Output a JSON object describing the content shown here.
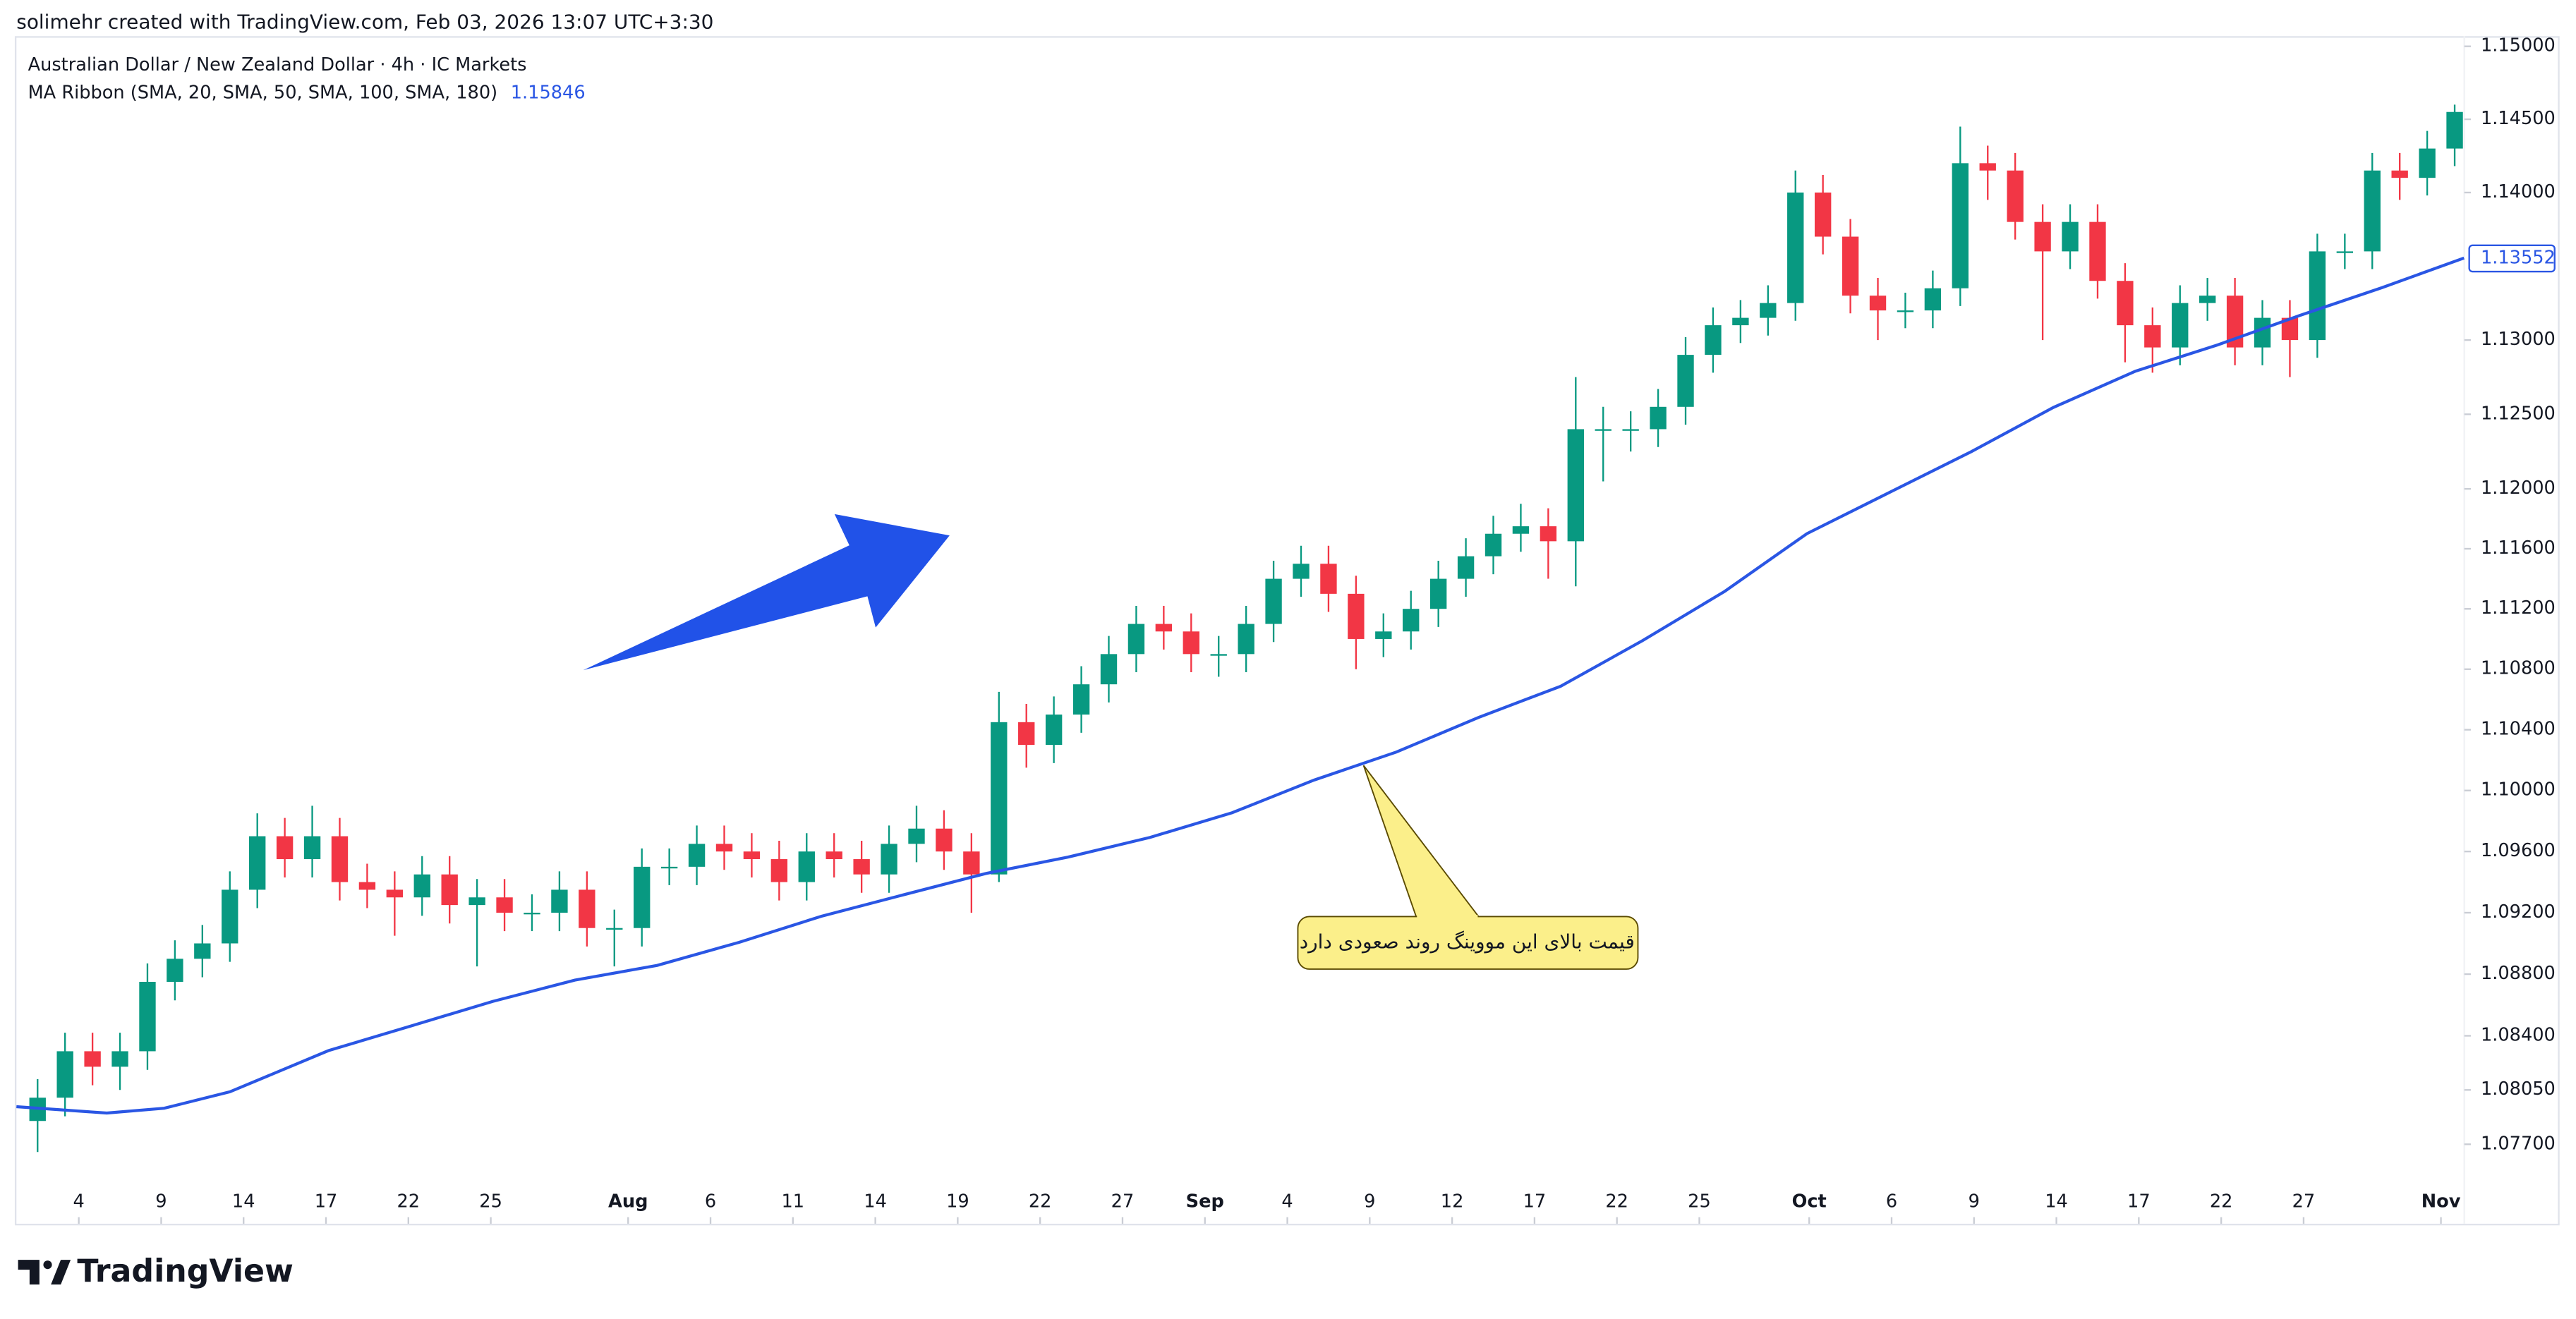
{
  "credit": "solimehr created with TradingView.com, Feb 03, 2026 13:07 UTC+3:30",
  "brand": "TradingView",
  "chart_data": {
    "type": "candlestick",
    "title": "Australian Dollar / New Zealand Dollar · 4h · IC Markets",
    "annotation": "قیمت بالای این مووینگ روند صعودی دارد",
    "log_scale": true,
    "grid": false,
    "up_color": "#089981",
    "down_color": "#f23645",
    "x": [
      1,
      2,
      3,
      4,
      5,
      6,
      7,
      8,
      9,
      10,
      11,
      12,
      13,
      14,
      15,
      16,
      17,
      18,
      19,
      20,
      21,
      22,
      23,
      24,
      25,
      26,
      27,
      28,
      29,
      30,
      31,
      32,
      33,
      34,
      35,
      36,
      37,
      38,
      39,
      40,
      41,
      42,
      43,
      44,
      45,
      46,
      47,
      48,
      49,
      50,
      51,
      52,
      53,
      54,
      55,
      56,
      57,
      58,
      59,
      60,
      61,
      62,
      63,
      64,
      65,
      66,
      67,
      68,
      69,
      70,
      71,
      72,
      73,
      74,
      75,
      76,
      77,
      78,
      79,
      80,
      81,
      82,
      83,
      84,
      85,
      86,
      87,
      88,
      89
    ],
    "open": [
      1.0785,
      1.08,
      1.083,
      1.082,
      1.083,
      1.0875,
      1.089,
      1.09,
      1.0935,
      1.097,
      1.0955,
      1.097,
      1.094,
      1.0935,
      1.093,
      1.0945,
      1.0925,
      1.093,
      1.092,
      1.092,
      1.0935,
      1.091,
      1.091,
      1.095,
      1.095,
      1.0965,
      1.096,
      1.0955,
      1.094,
      1.096,
      1.0955,
      1.0945,
      1.0965,
      1.0975,
      1.096,
      1.0945,
      1.1045,
      1.103,
      1.105,
      1.107,
      1.109,
      1.111,
      1.1105,
      1.109,
      1.109,
      1.111,
      1.114,
      1.115,
      1.113,
      1.11,
      1.1105,
      1.112,
      1.114,
      1.1155,
      1.117,
      1.1175,
      1.1165,
      1.124,
      1.124,
      1.124,
      1.1255,
      1.129,
      1.131,
      1.1315,
      1.1325,
      1.14,
      1.137,
      1.133,
      1.132,
      1.132,
      1.1335,
      1.142,
      1.1415,
      1.138,
      1.136,
      1.138,
      1.134,
      1.131,
      1.1295,
      1.1325,
      1.133,
      1.1295,
      1.1315,
      1.13,
      1.136,
      1.136,
      1.1415,
      1.141,
      1.143
    ],
    "high": [
      1.0812,
      1.0842,
      1.0842,
      1.0842,
      1.0887,
      1.0902,
      1.0912,
      1.0947,
      1.0985,
      1.0982,
      1.099,
      1.0982,
      1.0952,
      1.0947,
      1.0957,
      1.0957,
      1.0942,
      1.0942,
      1.0932,
      1.0947,
      1.0947,
      1.0922,
      1.0962,
      1.0962,
      1.0977,
      1.0977,
      1.0972,
      1.0967,
      1.0972,
      1.0972,
      1.0967,
      1.0977,
      1.099,
      1.0987,
      1.0972,
      1.1065,
      1.1057,
      1.1062,
      1.1082,
      1.1102,
      1.1122,
      1.1122,
      1.1117,
      1.1102,
      1.1122,
      1.1152,
      1.1162,
      1.1162,
      1.1142,
      1.1117,
      1.1132,
      1.1152,
      1.1167,
      1.1182,
      1.119,
      1.1187,
      1.1275,
      1.1255,
      1.1252,
      1.1267,
      1.1302,
      1.1322,
      1.1327,
      1.1337,
      1.1415,
      1.1412,
      1.1382,
      1.1342,
      1.1332,
      1.1347,
      1.1445,
      1.1432,
      1.1427,
      1.1392,
      1.1392,
      1.1392,
      1.1352,
      1.1322,
      1.1337,
      1.1342,
      1.1342,
      1.1327,
      1.1327,
      1.1372,
      1.1372,
      1.1427,
      1.1427,
      1.1442,
      1.146
    ],
    "low": [
      1.0765,
      1.0788,
      1.0808,
      1.0805,
      1.0818,
      1.0863,
      1.0878,
      1.0888,
      1.0923,
      1.0943,
      1.0943,
      1.0928,
      1.0923,
      1.0905,
      1.0918,
      1.0913,
      1.0885,
      1.0908,
      1.0908,
      1.0908,
      1.0898,
      1.0885,
      1.0898,
      1.0938,
      1.0938,
      1.0948,
      1.0943,
      1.0928,
      1.0928,
      1.0943,
      1.0933,
      1.0933,
      1.0953,
      1.0948,
      1.092,
      1.094,
      1.1015,
      1.1018,
      1.1038,
      1.1058,
      1.1078,
      1.1093,
      1.1078,
      1.1075,
      1.1078,
      1.1098,
      1.1128,
      1.1118,
      1.108,
      1.1088,
      1.1093,
      1.1108,
      1.1128,
      1.1143,
      1.1158,
      1.114,
      1.1135,
      1.1205,
      1.1225,
      1.1228,
      1.1243,
      1.1278,
      1.1298,
      1.1303,
      1.1313,
      1.1358,
      1.1318,
      1.13,
      1.1308,
      1.1308,
      1.1323,
      1.1395,
      1.1368,
      1.13,
      1.1348,
      1.1328,
      1.1285,
      1.1278,
      1.1283,
      1.1313,
      1.1283,
      1.1283,
      1.1275,
      1.1288,
      1.1348,
      1.1348,
      1.1395,
      1.1398,
      1.1418
    ],
    "close": [
      1.08,
      1.083,
      1.082,
      1.083,
      1.0875,
      1.089,
      1.09,
      1.0935,
      1.097,
      1.0955,
      1.097,
      1.094,
      1.0935,
      1.093,
      1.0945,
      1.0925,
      1.093,
      1.092,
      1.092,
      1.0935,
      1.091,
      1.091,
      1.095,
      1.095,
      1.0965,
      1.096,
      1.0955,
      1.094,
      1.096,
      1.0955,
      1.0945,
      1.0965,
      1.0975,
      1.096,
      1.0945,
      1.1045,
      1.103,
      1.105,
      1.107,
      1.109,
      1.111,
      1.1105,
      1.109,
      1.109,
      1.111,
      1.114,
      1.115,
      1.113,
      1.11,
      1.1105,
      1.112,
      1.114,
      1.1155,
      1.117,
      1.1175,
      1.1165,
      1.124,
      1.124,
      1.124,
      1.1255,
      1.129,
      1.131,
      1.1315,
      1.1325,
      1.14,
      1.137,
      1.133,
      1.132,
      1.132,
      1.1335,
      1.142,
      1.1415,
      1.138,
      1.136,
      1.138,
      1.134,
      1.131,
      1.1295,
      1.1325,
      1.133,
      1.1295,
      1.1315,
      1.13,
      1.136,
      1.136,
      1.1415,
      1.141,
      1.143,
      1.1455
    ],
    "ma": {
      "name": "MA Ribbon (SMA, 20, SMA, 50, SMA, 100, SMA, 180)",
      "legend_value": 1.15846,
      "color": "#2a56e4",
      "last_value": 1.13552,
      "x": [
        0.73,
        4.02,
        6.11,
        8.5,
        12.09,
        15.08,
        18.07,
        21.06,
        24.06,
        27.04,
        30.04,
        33.03,
        36.02,
        39.01,
        42.0,
        44.99,
        47.98,
        50.97,
        53.96,
        56.95,
        59.94,
        62.93,
        65.92,
        68.91,
        71.9,
        74.89,
        77.88,
        80.87,
        83.86,
        86.85,
        89.84
      ],
      "values": [
        1.07942,
        1.07901,
        1.07932,
        1.08038,
        1.08304,
        1.08463,
        1.08623,
        1.08761,
        1.08857,
        1.09007,
        1.09177,
        1.09317,
        1.09456,
        1.09563,
        1.09692,
        1.09854,
        1.10069,
        1.10253,
        1.10481,
        1.10687,
        1.1099,
        1.11317,
        1.11701,
        1.11975,
        1.12249,
        1.12546,
        1.1279,
        1.12967,
        1.13166,
        1.13354,
        1.13555
      ]
    },
    "xlim": [
      0.73,
      89.85
    ],
    "xticks": [
      {
        "value": 3,
        "label": "4"
      },
      {
        "value": 6,
        "label": "9"
      },
      {
        "value": 9,
        "label": "14"
      },
      {
        "value": 12,
        "label": "17"
      },
      {
        "value": 15,
        "label": "22"
      },
      {
        "value": 18,
        "label": "25"
      },
      {
        "value": 23,
        "label": "Aug"
      },
      {
        "value": 26,
        "label": "6"
      },
      {
        "value": 29,
        "label": "11"
      },
      {
        "value": 32,
        "label": "14"
      },
      {
        "value": 35,
        "label": "19"
      },
      {
        "value": 38,
        "label": "22"
      },
      {
        "value": 41,
        "label": "27"
      },
      {
        "value": 44,
        "label": "Sep"
      },
      {
        "value": 47,
        "label": "4"
      },
      {
        "value": 50,
        "label": "9"
      },
      {
        "value": 53,
        "label": "12"
      },
      {
        "value": 56,
        "label": "17"
      },
      {
        "value": 59,
        "label": "22"
      },
      {
        "value": 62,
        "label": "25"
      },
      {
        "value": 66,
        "label": "Oct"
      },
      {
        "value": 69,
        "label": "6"
      },
      {
        "value": 72,
        "label": "9"
      },
      {
        "value": 75,
        "label": "14"
      },
      {
        "value": 78,
        "label": "17"
      },
      {
        "value": 81,
        "label": "22"
      },
      {
        "value": 84,
        "label": "27"
      },
      {
        "value": 89,
        "label": "Nov"
      }
    ],
    "ylim": [
      1.0719,
      1.1507
    ],
    "yticks": [
      {
        "value": 1.15,
        "label": "1.15000"
      },
      {
        "value": 1.145,
        "label": "1.14500"
      },
      {
        "value": 1.14,
        "label": "1.14000"
      },
      {
        "value": 1.13,
        "label": "1.13000"
      },
      {
        "value": 1.125,
        "label": "1.12500"
      },
      {
        "value": 1.12,
        "label": "1.12000"
      },
      {
        "value": 1.116,
        "label": "1.11600"
      },
      {
        "value": 1.112,
        "label": "1.11200"
      },
      {
        "value": 1.108,
        "label": "1.10800"
      },
      {
        "value": 1.104,
        "label": "1.10400"
      },
      {
        "value": 1.1,
        "label": "1.10000"
      },
      {
        "value": 1.096,
        "label": "1.09600"
      },
      {
        "value": 1.092,
        "label": "1.09200"
      },
      {
        "value": 1.088,
        "label": "1.08800"
      },
      {
        "value": 1.084,
        "label": "1.08400"
      },
      {
        "value": 1.0805,
        "label": "1.08050"
      },
      {
        "value": 1.077,
        "label": "1.07700"
      }
    ]
  }
}
